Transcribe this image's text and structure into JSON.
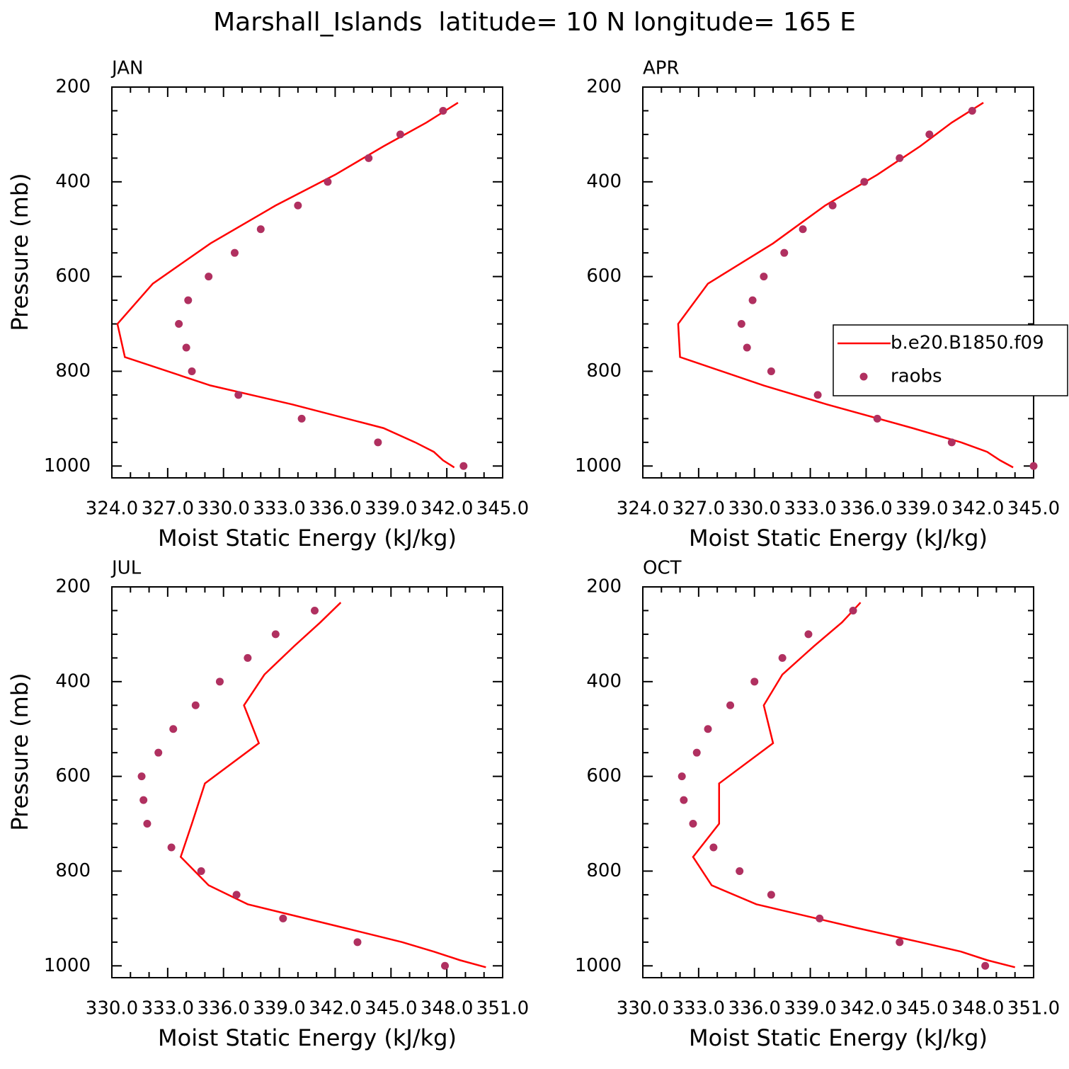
{
  "title": "Marshall_Islands  latitude= 10 N longitude= 165 E",
  "chart_data": [
    {
      "type": "line",
      "title": "JAN",
      "xlabel": "Moist Static Energy (kJ/kg)",
      "ylabel": "Pressure (mb)",
      "xlim": [
        324,
        345
      ],
      "ylim": [
        1025,
        200
      ],
      "xticks": [
        {
          "value": 324,
          "label": "324.0"
        },
        {
          "value": 327,
          "label": "327.0"
        },
        {
          "value": 330,
          "label": "330.0"
        },
        {
          "value": 333,
          "label": "333.0"
        },
        {
          "value": 336,
          "label": "336.0"
        },
        {
          "value": 339,
          "label": "339.0"
        },
        {
          "value": 342,
          "label": "342.0"
        },
        {
          "value": 345,
          "label": "345.0"
        }
      ],
      "yticks": [
        200,
        400,
        600,
        800,
        1000
      ],
      "xminorticks": [
        325,
        326,
        328,
        329,
        331,
        332,
        334,
        335,
        337,
        338,
        340,
        341,
        343,
        344
      ],
      "yminorticks": [
        250,
        300,
        350,
        450,
        500,
        550,
        650,
        700,
        750,
        850,
        900,
        950
      ],
      "series": [
        {
          "type": "line",
          "color": "#ff0000",
          "x": [
            342.6,
            340.9,
            338.6,
            336.0,
            332.8,
            329.3,
            326.2,
            324.3,
            324.7,
            329.3,
            333.7,
            338.6,
            340.3,
            341.3,
            341.8,
            342.4
          ],
          "y": [
            233,
            275,
            325,
            385,
            450,
            530,
            615,
            700,
            770,
            830,
            870,
            920,
            950,
            970,
            988,
            1003
          ]
        },
        {
          "type": "scatter",
          "color": "#b03060",
          "x": [
            341.8,
            339.5,
            337.8,
            335.6,
            334.0,
            332.0,
            330.6,
            329.2,
            328.1,
            327.6,
            328.0,
            328.3,
            330.8,
            334.2,
            338.3,
            342.9
          ],
          "y": [
            250,
            300,
            350,
            400,
            450,
            500,
            550,
            600,
            650,
            700,
            750,
            800,
            850,
            900,
            950,
            1000
          ]
        }
      ]
    },
    {
      "type": "line",
      "title": "APR",
      "xlabel": "Moist Static Energy (kJ/kg)",
      "xlim": [
        324,
        345
      ],
      "ylim": [
        1025,
        200
      ],
      "xticks": [
        {
          "value": 324,
          "label": "324.0"
        },
        {
          "value": 327,
          "label": "327.0"
        },
        {
          "value": 330,
          "label": "330.0"
        },
        {
          "value": 333,
          "label": "333.0"
        },
        {
          "value": 336,
          "label": "336.0"
        },
        {
          "value": 339,
          "label": "339.0"
        },
        {
          "value": 342,
          "label": "342.0"
        },
        {
          "value": 345,
          "label": "345.0"
        }
      ],
      "yticks": [
        200,
        400,
        600,
        800,
        1000
      ],
      "xminorticks": [
        325,
        326,
        328,
        329,
        331,
        332,
        334,
        335,
        337,
        338,
        340,
        341,
        343,
        344
      ],
      "yminorticks": [
        250,
        300,
        350,
        450,
        500,
        550,
        650,
        700,
        750,
        850,
        900,
        950
      ],
      "legend": "right",
      "series": [
        {
          "type": "line",
          "name": "b.e20.B1850.f09",
          "color": "#ff0000",
          "x": [
            342.3,
            340.6,
            338.9,
            336.6,
            333.8,
            331.0,
            327.5,
            325.9,
            326.0,
            330.5,
            333.9,
            338.5,
            341.1,
            342.5,
            343.2,
            343.9
          ],
          "y": [
            233,
            275,
            325,
            385,
            450,
            530,
            615,
            700,
            770,
            830,
            870,
            920,
            950,
            970,
            988,
            1003
          ]
        },
        {
          "type": "scatter",
          "name": "raobs",
          "color": "#b03060",
          "x": [
            341.7,
            339.4,
            337.8,
            335.9,
            334.2,
            332.6,
            331.6,
            330.5,
            329.9,
            329.3,
            329.6,
            330.9,
            333.4,
            336.6,
            340.6,
            345.0
          ],
          "y": [
            250,
            300,
            350,
            400,
            450,
            500,
            550,
            600,
            650,
            700,
            750,
            800,
            850,
            900,
            950,
            1000
          ]
        }
      ]
    },
    {
      "type": "line",
      "title": "JUL",
      "xlabel": "Moist Static Energy (kJ/kg)",
      "ylabel": "Pressure (mb)",
      "xlim": [
        330,
        351
      ],
      "ylim": [
        1025,
        200
      ],
      "xticks": [
        {
          "value": 330,
          "label": "330.0"
        },
        {
          "value": 333,
          "label": "333.0"
        },
        {
          "value": 336,
          "label": "336.0"
        },
        {
          "value": 339,
          "label": "339.0"
        },
        {
          "value": 342,
          "label": "342.0"
        },
        {
          "value": 345,
          "label": "345.0"
        },
        {
          "value": 348,
          "label": "348.0"
        },
        {
          "value": 351,
          "label": "351.0"
        }
      ],
      "yticks": [
        200,
        400,
        600,
        800,
        1000
      ],
      "xminorticks": [
        331,
        332,
        334,
        335,
        337,
        338,
        340,
        341,
        343,
        344,
        346,
        347,
        349,
        350
      ],
      "yminorticks": [
        250,
        300,
        350,
        450,
        500,
        550,
        650,
        700,
        750,
        850,
        900,
        950
      ],
      "series": [
        {
          "type": "line",
          "color": "#ff0000",
          "x": [
            342.3,
            341.2,
            339.8,
            338.2,
            337.1,
            337.9,
            335.0,
            334.3,
            333.7,
            335.2,
            337.3,
            342.5,
            345.6,
            347.3,
            348.7,
            350.1
          ],
          "y": [
            233,
            275,
            325,
            385,
            450,
            530,
            615,
            700,
            770,
            830,
            870,
            920,
            950,
            970,
            988,
            1003
          ]
        },
        {
          "type": "scatter",
          "color": "#b03060",
          "x": [
            340.9,
            338.8,
            337.3,
            335.8,
            334.5,
            333.3,
            332.5,
            331.6,
            331.7,
            331.9,
            333.2,
            334.8,
            336.7,
            339.2,
            343.2,
            347.9
          ],
          "y": [
            250,
            300,
            350,
            400,
            450,
            500,
            550,
            600,
            650,
            700,
            750,
            800,
            850,
            900,
            950,
            1000
          ]
        }
      ]
    },
    {
      "type": "line",
      "title": "OCT",
      "xlabel": "Moist Static Energy (kJ/kg)",
      "xlim": [
        330,
        351
      ],
      "ylim": [
        1025,
        200
      ],
      "xticks": [
        {
          "value": 330,
          "label": "330.0"
        },
        {
          "value": 333,
          "label": "333.0"
        },
        {
          "value": 336,
          "label": "336.0"
        },
        {
          "value": 339,
          "label": "339.0"
        },
        {
          "value": 342,
          "label": "342.0"
        },
        {
          "value": 345,
          "label": "345.0"
        },
        {
          "value": 348,
          "label": "348.0"
        },
        {
          "value": 351,
          "label": "351.0"
        }
      ],
      "yticks": [
        200,
        400,
        600,
        800,
        1000
      ],
      "xminorticks": [
        331,
        332,
        334,
        335,
        337,
        338,
        340,
        341,
        343,
        344,
        346,
        347,
        349,
        350
      ],
      "yminorticks": [
        250,
        300,
        350,
        450,
        500,
        550,
        650,
        700,
        750,
        850,
        900,
        950
      ],
      "series": [
        {
          "type": "line",
          "color": "#ff0000",
          "x": [
            341.7,
            340.7,
            339.2,
            337.5,
            336.5,
            337.0,
            334.1,
            334.1,
            332.7,
            333.7,
            336.1,
            341.5,
            344.9,
            347.1,
            348.5,
            350.0
          ],
          "y": [
            233,
            275,
            325,
            385,
            450,
            530,
            615,
            700,
            770,
            830,
            870,
            920,
            950,
            970,
            988,
            1003
          ]
        },
        {
          "type": "scatter",
          "color": "#b03060",
          "x": [
            341.3,
            338.9,
            337.5,
            336.0,
            334.7,
            333.5,
            332.9,
            332.1,
            332.2,
            332.7,
            333.8,
            335.2,
            336.9,
            339.5,
            343.8,
            348.4
          ],
          "y": [
            250,
            300,
            350,
            400,
            450,
            500,
            550,
            600,
            650,
            700,
            750,
            800,
            850,
            900,
            950,
            1000
          ]
        }
      ]
    }
  ]
}
